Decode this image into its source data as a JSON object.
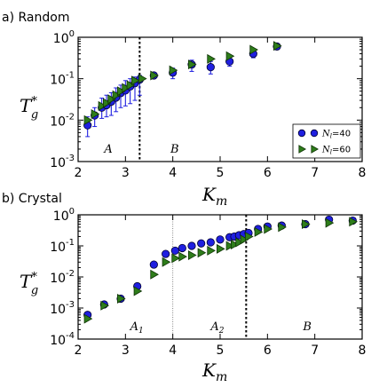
{
  "colors": {
    "circle_fill": "#1f1fe0",
    "circle_edge": "#000033",
    "triangle_fill": "#2e7d1a",
    "triangle_edge": "#0f3306",
    "errorbar": "#1f1fe0"
  },
  "chart_data": [
    {
      "panel_label": "a) Random",
      "type": "scatter",
      "xlabel": "K",
      "xlabel_sub": "m",
      "ylabel": "T",
      "ylabel_sup": "*",
      "ylabel_sub": "g",
      "xlim": [
        2,
        8
      ],
      "ylim": [
        0.001,
        1
      ],
      "yscale": "log",
      "xticks": [
        "2",
        "3",
        "4",
        "5",
        "6",
        "7",
        "8"
      ],
      "yticks": [
        {
          "base": "10",
          "exp": "-3",
          "value": 0.001
        },
        {
          "base": "10",
          "exp": "-2",
          "value": 0.01
        },
        {
          "base": "10",
          "exp": "-1",
          "value": 0.1
        },
        {
          "base": "10",
          "exp": "0",
          "value": 1
        }
      ],
      "vlines": [
        {
          "x": 3.3,
          "style": "thick-dotted"
        }
      ],
      "regions": [
        {
          "label": "A",
          "x": 2.55
        },
        {
          "label": "B",
          "x": 3.95
        }
      ],
      "legend": {
        "position": "lower-right",
        "entries": [
          {
            "marker": "circle",
            "text": "N",
            "sub": "l",
            "suffix": "=40"
          },
          {
            "marker": "triangle",
            "text": "N",
            "sub": "l",
            "suffix": "=60"
          }
        ]
      },
      "series": [
        {
          "marker": "circle",
          "x": [
            2.2,
            2.35,
            2.5,
            2.6,
            2.7,
            2.8,
            2.9,
            3.0,
            3.1,
            3.2,
            3.3,
            3.6,
            4.0,
            4.4,
            4.8,
            5.2,
            5.7,
            6.2
          ],
          "y": [
            0.0075,
            0.013,
            0.02,
            0.023,
            0.028,
            0.035,
            0.045,
            0.052,
            0.065,
            0.078,
            0.095,
            0.12,
            0.14,
            0.22,
            0.19,
            0.26,
            0.4,
            0.6
          ],
          "err_low": [
            0.004,
            0.007,
            0.011,
            0.012,
            0.013,
            0.016,
            0.02,
            0.022,
            0.025,
            0.03,
            0.04,
            0.1,
            0.1,
            0.15,
            0.13,
            0.2,
            0.32,
            0.5
          ],
          "err_high": [
            0.012,
            0.02,
            0.034,
            0.04,
            0.046,
            0.06,
            0.07,
            0.09,
            0.1,
            0.11,
            0.12,
            0.14,
            0.18,
            0.28,
            0.26,
            0.33,
            0.5,
            0.7
          ]
        },
        {
          "marker": "triangle",
          "x": [
            2.2,
            2.35,
            2.5,
            2.6,
            2.7,
            2.8,
            2.9,
            3.0,
            3.1,
            3.2,
            3.35,
            3.6,
            4.0,
            4.4,
            4.8,
            5.2,
            5.7,
            6.2
          ],
          "y": [
            0.01,
            0.014,
            0.022,
            0.026,
            0.032,
            0.04,
            0.05,
            0.06,
            0.07,
            0.09,
            0.1,
            0.12,
            0.16,
            0.22,
            0.3,
            0.35,
            0.5,
            0.62
          ]
        }
      ]
    },
    {
      "panel_label": "b) Crystal",
      "type": "scatter",
      "xlabel": "K",
      "xlabel_sub": "m",
      "ylabel": "T",
      "ylabel_sup": "*",
      "ylabel_sub": "g",
      "xlim": [
        2,
        8
      ],
      "ylim": [
        0.0001,
        1
      ],
      "yscale": "log",
      "xticks": [
        "2",
        "3",
        "4",
        "5",
        "6",
        "7",
        "8"
      ],
      "yticks": [
        {
          "base": "10",
          "exp": "-4",
          "value": 0.0001
        },
        {
          "base": "10",
          "exp": "-3",
          "value": 0.001
        },
        {
          "base": "10",
          "exp": "-2",
          "value": 0.01
        },
        {
          "base": "10",
          "exp": "-1",
          "value": 0.1
        },
        {
          "base": "10",
          "exp": "0",
          "value": 1
        }
      ],
      "vlines": [
        {
          "x": 4.0,
          "style": "thin-dotted"
        },
        {
          "x": 5.55,
          "style": "thick-dotted"
        }
      ],
      "regions": [
        {
          "label": "A",
          "sub": "1",
          "x": 3.1
        },
        {
          "label": "A",
          "sub": "2",
          "x": 4.8
        },
        {
          "label": "B",
          "x": 6.75
        }
      ],
      "series": [
        {
          "marker": "circle",
          "x": [
            2.2,
            2.55,
            2.9,
            3.25,
            3.6,
            3.85,
            4.05,
            4.2,
            4.4,
            4.6,
            4.8,
            5.0,
            5.2,
            5.3,
            5.4,
            5.5,
            5.6,
            5.8,
            6.0,
            6.3,
            6.8,
            7.3,
            7.8
          ],
          "y": [
            0.0006,
            0.0013,
            0.002,
            0.005,
            0.025,
            0.055,
            0.07,
            0.085,
            0.1,
            0.12,
            0.13,
            0.16,
            0.19,
            0.2,
            0.22,
            0.24,
            0.26,
            0.35,
            0.42,
            0.45,
            0.5,
            0.7,
            0.65
          ]
        },
        {
          "marker": "triangle",
          "x": [
            2.2,
            2.55,
            2.9,
            3.25,
            3.6,
            3.85,
            4.05,
            4.2,
            4.4,
            4.6,
            4.8,
            5.0,
            5.2,
            5.3,
            5.4,
            5.5,
            5.6,
            5.8,
            6.0,
            6.3,
            6.8,
            7.3,
            7.8
          ],
          "y": [
            0.00045,
            0.0012,
            0.002,
            0.0035,
            0.012,
            0.03,
            0.04,
            0.045,
            0.05,
            0.06,
            0.07,
            0.08,
            0.1,
            0.11,
            0.13,
            0.16,
            0.2,
            0.28,
            0.35,
            0.4,
            0.5,
            0.55,
            0.6
          ]
        }
      ]
    }
  ]
}
